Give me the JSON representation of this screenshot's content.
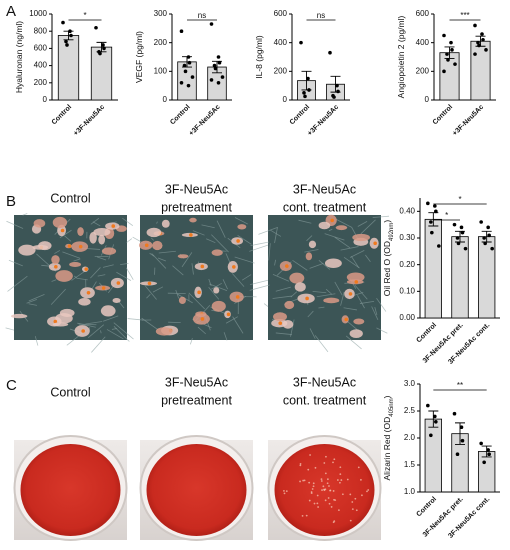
{
  "panels": {
    "A": {
      "label": "A"
    },
    "B": {
      "label": "B",
      "captions": [
        [
          "Control"
        ],
        [
          "3F-Neu5Ac",
          "pretreatment"
        ],
        [
          "3F-Neu5Ac",
          "cont. treatment"
        ]
      ]
    },
    "C": {
      "label": "C",
      "captions": [
        [
          "Control"
        ],
        [
          "3F-Neu5Ac",
          "pretreatment"
        ],
        [
          "3F-Neu5Ac",
          "cont. treatment"
        ]
      ]
    }
  },
  "chart_data": [
    {
      "type": "bar",
      "y_label": [
        "Hyaluronan (ng/ml)"
      ],
      "categories": [
        "Control",
        "+3F-Neu5Ac"
      ],
      "values": [
        750,
        615
      ],
      "errors": [
        50,
        55
      ],
      "points": [
        [
          900,
          800,
          750,
          680,
          640
        ],
        [
          840,
          640,
          600,
          560,
          540
        ]
      ],
      "ylim": [
        0,
        1000
      ],
      "yticks": [
        0,
        200,
        400,
        600,
        800,
        1000
      ],
      "significance": [
        {
          "pair": [
            "Control",
            "+3F-Neu5Ac"
          ],
          "label": "*"
        }
      ],
      "color": "#d9d9d9"
    },
    {
      "type": "bar",
      "y_label": [
        "VEGF (pg/ml)"
      ],
      "categories": [
        "Control",
        "+3F-Neu5Ac"
      ],
      "values": [
        133,
        115
      ],
      "errors": [
        18,
        20
      ],
      "points": [
        [
          240,
          150,
          130,
          120,
          100,
          80,
          60,
          50
        ],
        [
          265,
          150,
          130,
          120,
          110,
          80,
          70,
          60
        ]
      ],
      "ylim": [
        0,
        300
      ],
      "yticks": [
        0,
        100,
        200,
        300
      ],
      "significance": [
        {
          "pair": [
            "Control",
            "+3F-Neu5Ac"
          ],
          "label": "ns"
        }
      ],
      "color": "#d9d9d9"
    },
    {
      "type": "bar",
      "y_label": [
        "IL-8 (pg/ml)"
      ],
      "categories": [
        "Control",
        "+3F-Neu5Ac"
      ],
      "values": [
        135,
        110
      ],
      "errors": [
        65,
        55
      ],
      "points": [
        [
          400,
          150,
          70,
          50,
          25
        ],
        [
          330,
          100,
          60,
          30,
          20
        ]
      ],
      "ylim": [
        0,
        600
      ],
      "yticks": [
        0,
        200,
        400,
        600
      ],
      "significance": [
        {
          "pair": [
            "Control",
            "+3F-Neu5Ac"
          ],
          "label": "ns"
        }
      ],
      "color": "#d9d9d9"
    },
    {
      "type": "bar",
      "y_label": [
        "Angiopoietin 2 (pg/ml)"
      ],
      "categories": [
        "Control",
        "+3F-Neu5Ac"
      ],
      "values": [
        330,
        410
      ],
      "errors": [
        40,
        35
      ],
      "points": [
        [
          450,
          400,
          350,
          320,
          280,
          250,
          200
        ],
        [
          520,
          460,
          420,
          400,
          380,
          350,
          320
        ]
      ],
      "ylim": [
        0,
        600
      ],
      "yticks": [
        0,
        200,
        400,
        600
      ],
      "significance": [
        {
          "pair": [
            "Control",
            "+3F-Neu5Ac"
          ],
          "label": "***"
        }
      ],
      "color": "#d9d9d9"
    },
    {
      "type": "bar",
      "y_label": [
        "Oil Red O (OD",
        "492nm",
        ")"
      ],
      "categories": [
        "Control",
        "3F-Neu5Ac pret.",
        "3F-Neu5Ac cont."
      ],
      "values": [
        0.37,
        0.305,
        0.305
      ],
      "errors": [
        0.025,
        0.02,
        0.02
      ],
      "points": [
        [
          0.43,
          0.42,
          0.4,
          0.36,
          0.32,
          0.27
        ],
        [
          0.35,
          0.34,
          0.32,
          0.3,
          0.28,
          0.26
        ],
        [
          0.36,
          0.34,
          0.31,
          0.3,
          0.28,
          0.26
        ]
      ],
      "ylim": [
        0,
        0.45
      ],
      "yticks": [
        {
          "value": 0,
          "label": "0.00"
        },
        {
          "value": 0.1,
          "label": "0.10"
        },
        {
          "value": 0.2,
          "label": "0.20"
        },
        {
          "value": 0.3,
          "label": "0.30"
        },
        {
          "value": 0.4,
          "label": "0.40"
        }
      ],
      "significance": [
        {
          "pair": [
            "Control",
            "3F-Neu5Ac cont."
          ],
          "label": "*"
        },
        {
          "pair": [
            "Control",
            "3F-Neu5Ac pret."
          ],
          "label": "*"
        }
      ],
      "color": "#d9d9d9"
    },
    {
      "type": "bar",
      "y_label": [
        "Alizarin Red (OD",
        "405nm",
        ")"
      ],
      "categories": [
        "Control",
        "3F-Neu5Ac pret.",
        "3F-Neu5Ac cont."
      ],
      "values": [
        2.35,
        2.08,
        1.75
      ],
      "errors": [
        0.15,
        0.2,
        0.1
      ],
      "points": [
        [
          2.6,
          2.4,
          2.3,
          2.05
        ],
        [
          2.45,
          2.2,
          1.95,
          1.7
        ],
        [
          1.9,
          1.78,
          1.7,
          1.55
        ]
      ],
      "ylim": [
        1.0,
        3.0
      ],
      "yticks": [
        {
          "value": 1.0,
          "label": "1.0"
        },
        {
          "value": 1.5,
          "label": "1.5"
        },
        {
          "value": 2.0,
          "label": "2.0"
        },
        {
          "value": 2.5,
          "label": "2.5"
        },
        {
          "value": 3.0,
          "label": "3.0"
        }
      ],
      "significance": [
        {
          "pair": [
            "Control",
            "3F-Neu5Ac cont."
          ],
          "label": "**"
        }
      ],
      "color": "#d9d9d9"
    }
  ]
}
